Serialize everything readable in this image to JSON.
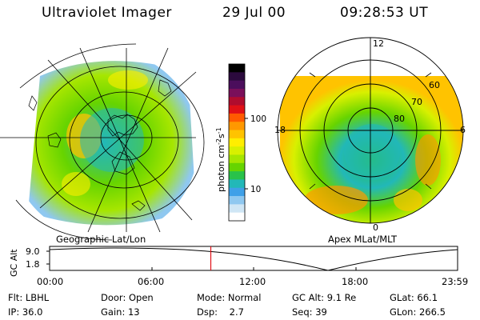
{
  "header": {
    "instrument": "Ultraviolet Imager",
    "date": "29 Jul 00",
    "time": "09:28:53 UT"
  },
  "left_panel": {
    "label": "Geographic Lat/Lon"
  },
  "right_panel": {
    "label": "Apex MLat/MLT",
    "mlt_labels": [
      "12",
      "18",
      "6",
      "0"
    ],
    "mlat_labels": [
      "60",
      "70",
      "80"
    ]
  },
  "colorbar": {
    "unit_label": "photon cm",
    "unit_exp1": "-2",
    "unit_s": "s",
    "unit_exp2": "-1",
    "ticks": [
      "100",
      "10"
    ],
    "colors": [
      "#000000",
      "#2b0a3d",
      "#4b0e5c",
      "#7a0f5a",
      "#b00c2e",
      "#e01016",
      "#ff5a00",
      "#ff9800",
      "#ffc300",
      "#ffee00",
      "#d8f000",
      "#a6e600",
      "#66d400",
      "#29c24a",
      "#22b8b8",
      "#3fa0e8",
      "#8fc8f0",
      "#cfe6f5",
      "#ffffff"
    ]
  },
  "altitude_strip": {
    "axis_label": "GC Alt",
    "y_ticks": [
      "9.0",
      "1.8"
    ],
    "x_ticks": [
      "00:00",
      "06:00",
      "12:00",
      "18:00",
      "23:59"
    ],
    "marker_fraction": 0.395
  },
  "info": {
    "row1": [
      {
        "key": "Flt:",
        "val": "LBHL"
      },
      {
        "key": "Door:",
        "val": "Open"
      },
      {
        "key": "Mode:",
        "val": "Normal"
      },
      {
        "key": "GC Alt:",
        "val": "9.1 Re"
      },
      {
        "key": "GLat:",
        "val": "66.1"
      }
    ],
    "row2": [
      {
        "key": "IP:",
        "val": "36.0"
      },
      {
        "key": "Gain:",
        "val": "13"
      },
      {
        "key": "Dsp:",
        "val": "2.7"
      },
      {
        "key": "Seq:",
        "val": "39"
      },
      {
        "key": "GLon:",
        "val": "266.5"
      }
    ]
  }
}
